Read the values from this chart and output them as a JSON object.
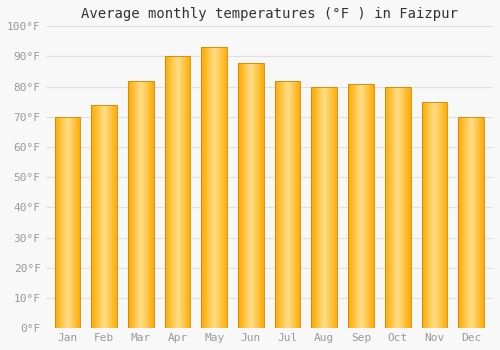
{
  "title": "Average monthly temperatures (°F ) in Faizpur",
  "months": [
    "Jan",
    "Feb",
    "Mar",
    "Apr",
    "May",
    "Jun",
    "Jul",
    "Aug",
    "Sep",
    "Oct",
    "Nov",
    "Dec"
  ],
  "values": [
    70,
    74,
    82,
    90,
    93,
    88,
    82,
    80,
    81,
    80,
    75,
    70
  ],
  "bar_color_face": "#FFAA00",
  "bar_color_light": "#FFCC55",
  "bar_color_edge": "#CC8800",
  "background_color": "#F8F8F8",
  "grid_color": "#E0E0E0",
  "ylim": [
    0,
    100
  ],
  "yticks": [
    0,
    10,
    20,
    30,
    40,
    50,
    60,
    70,
    80,
    90,
    100
  ],
  "ylabel_suffix": "°F",
  "title_fontsize": 10,
  "tick_fontsize": 8,
  "tick_color": "#999999",
  "title_color": "#333333",
  "font_family": "monospace"
}
